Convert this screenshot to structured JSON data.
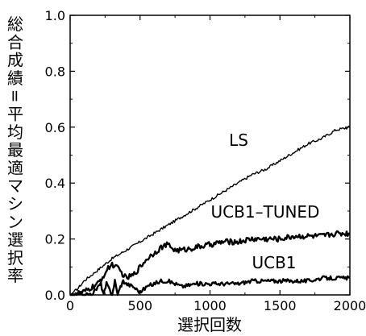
{
  "chart_data": {
    "type": "line",
    "title": "",
    "xlabel": "選択回数",
    "ylabel": "総合成績=平均最適マシン選択率",
    "xlim": [
      0,
      2000
    ],
    "ylim": [
      0,
      1.0
    ],
    "x_ticks": [
      "0",
      "500",
      "1000",
      "1500",
      "2000"
    ],
    "y_ticks": [
      "0.0",
      "0.2",
      "0.4",
      "0.6",
      "0.8",
      "1.0"
    ],
    "grid": false,
    "series": [
      {
        "name": "LS",
        "x": [
          0,
          50,
          100,
          200,
          300,
          400,
          500,
          600,
          700,
          800,
          900,
          1000,
          1100,
          1200,
          1300,
          1400,
          1500,
          1600,
          1700,
          1800,
          1900,
          2000
        ],
        "values": [
          0.0,
          0.02,
          0.05,
          0.09,
          0.13,
          0.16,
          0.19,
          0.22,
          0.25,
          0.28,
          0.31,
          0.34,
          0.37,
          0.4,
          0.43,
          0.45,
          0.48,
          0.51,
          0.54,
          0.56,
          0.59,
          0.6
        ]
      },
      {
        "name": "UCB1–TUNED",
        "x": [
          0,
          100,
          200,
          280,
          300,
          350,
          400,
          450,
          500,
          550,
          600,
          650,
          700,
          750,
          800,
          900,
          1000,
          1100,
          1200,
          1300,
          1400,
          1500,
          1600,
          1700,
          1800,
          1900,
          2000
        ],
        "values": [
          0.0,
          0.01,
          0.04,
          0.1,
          0.11,
          0.09,
          0.06,
          0.07,
          0.1,
          0.13,
          0.15,
          0.17,
          0.18,
          0.16,
          0.16,
          0.17,
          0.18,
          0.19,
          0.19,
          0.2,
          0.2,
          0.2,
          0.21,
          0.21,
          0.21,
          0.22,
          0.22
        ]
      },
      {
        "name": "UCB1",
        "x": [
          0,
          150,
          220,
          240,
          260,
          300,
          320,
          340,
          360,
          380,
          400,
          450,
          500,
          550,
          600,
          650,
          700,
          750,
          800,
          900,
          1000,
          1100,
          1200,
          1300,
          1400,
          1500,
          1600,
          1700,
          1800,
          1900,
          2000
        ],
        "values": [
          0.0,
          0.0,
          0.04,
          0.0,
          0.04,
          0.0,
          0.05,
          0.0,
          0.03,
          0.05,
          0.04,
          0.03,
          0.01,
          0.03,
          0.04,
          0.05,
          0.05,
          0.04,
          0.03,
          0.04,
          0.04,
          0.04,
          0.04,
          0.05,
          0.05,
          0.05,
          0.05,
          0.05,
          0.06,
          0.06,
          0.06
        ]
      }
    ]
  }
}
